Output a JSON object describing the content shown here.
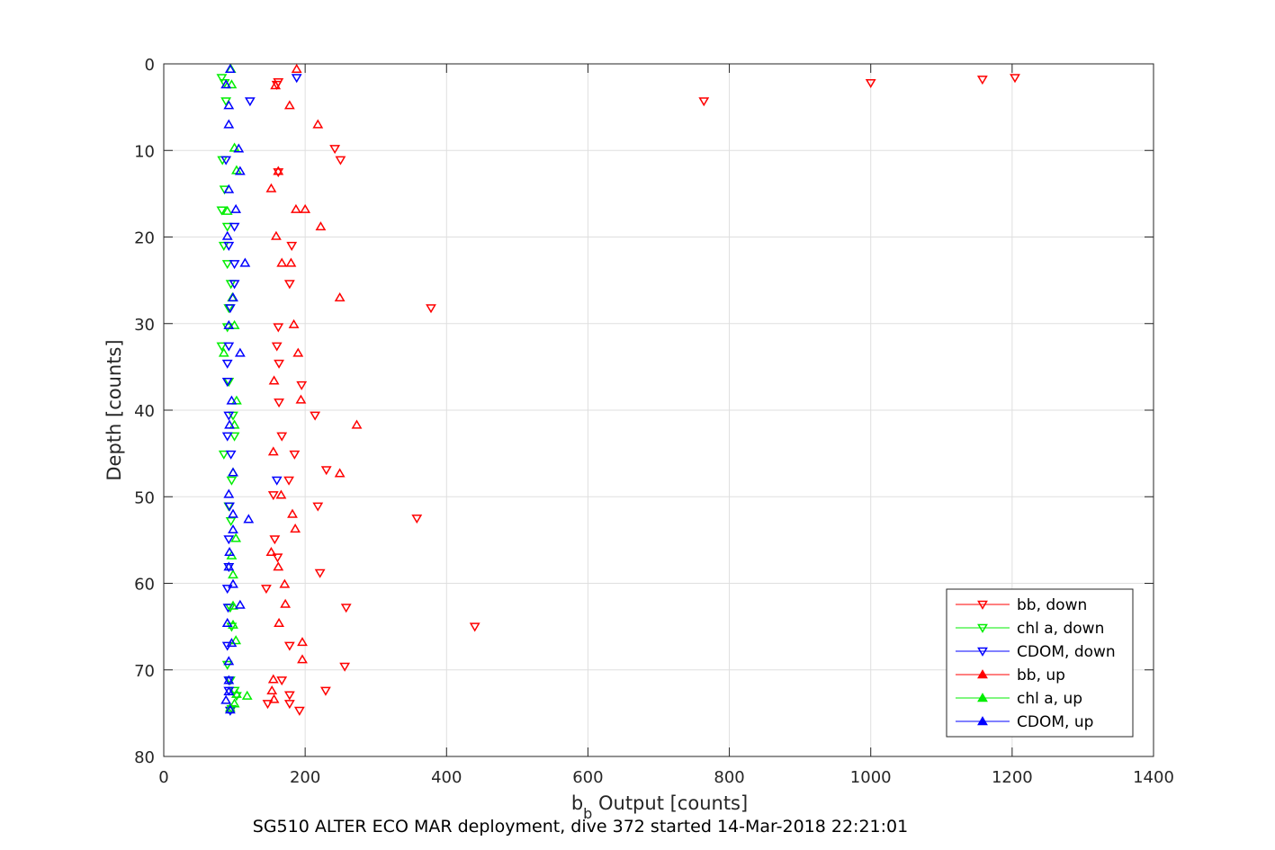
{
  "chart_data": {
    "type": "scatter",
    "title": "",
    "xlabel_main": "b",
    "xlabel_sub": "b",
    "xlabel_rest": " Output [counts]",
    "ylabel": "Depth [counts]",
    "caption": "SG510 ALTER ECO MAR deployment, dive 372 started 14-Mar-2018 22:21:01",
    "xlim": [
      0,
      1400
    ],
    "ylim": [
      0,
      80
    ],
    "y_reversed": true,
    "x_ticks": [
      0,
      200,
      400,
      600,
      800,
      1000,
      1200,
      1400
    ],
    "y_ticks": [
      0,
      10,
      20,
      30,
      40,
      50,
      60,
      70,
      80
    ],
    "grid": true,
    "legend_position": "bottom-right",
    "series": [
      {
        "name": "bb, down",
        "color": "#ff0000",
        "marker": "triangle-down",
        "points": [
          [
            1204,
            1.6
          ],
          [
            1158,
            1.8
          ],
          [
            1000,
            2.2
          ],
          [
            764,
            4.3
          ],
          [
            378,
            28.2
          ],
          [
            358,
            52.5
          ],
          [
            440,
            65.0
          ],
          [
            250,
            11.1
          ],
          [
            242,
            9.8
          ],
          [
            160,
            2.4
          ],
          [
            162,
            2.1
          ],
          [
            162,
            12.5
          ],
          [
            181,
            21.0
          ],
          [
            178,
            25.4
          ],
          [
            162,
            30.4
          ],
          [
            160,
            32.6
          ],
          [
            163,
            34.6
          ],
          [
            195,
            37.1
          ],
          [
            163,
            39.1
          ],
          [
            214,
            40.6
          ],
          [
            167,
            43.0
          ],
          [
            185,
            45.1
          ],
          [
            230,
            46.9
          ],
          [
            177,
            48.1
          ],
          [
            155,
            49.8
          ],
          [
            218,
            51.1
          ],
          [
            157,
            54.9
          ],
          [
            161,
            57.0
          ],
          [
            221,
            58.8
          ],
          [
            145,
            60.6
          ],
          [
            258,
            62.8
          ],
          [
            178,
            67.2
          ],
          [
            256,
            69.6
          ],
          [
            167,
            71.2
          ],
          [
            229,
            72.4
          ],
          [
            178,
            72.9
          ],
          [
            147,
            73.9
          ],
          [
            178,
            73.9
          ],
          [
            192,
            74.7
          ]
        ]
      },
      {
        "name": "chl a, down",
        "color": "#00ee00",
        "marker": "triangle-down",
        "points": [
          [
            82,
            1.6
          ],
          [
            86,
            2.2
          ],
          [
            88,
            4.3
          ],
          [
            83,
            11.1
          ],
          [
            86,
            14.5
          ],
          [
            82,
            16.9
          ],
          [
            90,
            18.8
          ],
          [
            85,
            21.0
          ],
          [
            90,
            23.1
          ],
          [
            95,
            25.4
          ],
          [
            92,
            28.2
          ],
          [
            90,
            30.4
          ],
          [
            82,
            32.6
          ],
          [
            92,
            36.7
          ],
          [
            98,
            40.6
          ],
          [
            100,
            43.0
          ],
          [
            85,
            45.1
          ],
          [
            96,
            48.1
          ],
          [
            92,
            51.1
          ],
          [
            95,
            52.8
          ],
          [
            92,
            58.1
          ],
          [
            94,
            62.8
          ],
          [
            96,
            65.0
          ],
          [
            90,
            69.4
          ],
          [
            94,
            71.2
          ],
          [
            100,
            72.4
          ],
          [
            103,
            73.0
          ],
          [
            96,
            74.5
          ]
        ]
      },
      {
        "name": "CDOM, down",
        "color": "#0000ff",
        "marker": "triangle-down",
        "points": [
          [
            188,
            1.6
          ],
          [
            122,
            4.3
          ],
          [
            88,
            11.1
          ],
          [
            100,
            18.8
          ],
          [
            92,
            21.0
          ],
          [
            100,
            23.1
          ],
          [
            100,
            25.4
          ],
          [
            94,
            28.2
          ],
          [
            92,
            32.6
          ],
          [
            90,
            34.6
          ],
          [
            90,
            36.7
          ],
          [
            92,
            40.6
          ],
          [
            90,
            43.0
          ],
          [
            95,
            45.1
          ],
          [
            160,
            48.1
          ],
          [
            93,
            51.1
          ],
          [
            92,
            54.9
          ],
          [
            92,
            58.1
          ],
          [
            90,
            60.6
          ],
          [
            91,
            62.8
          ],
          [
            90,
            67.2
          ],
          [
            92,
            71.2
          ],
          [
            92,
            72.4
          ],
          [
            94,
            74.7
          ]
        ]
      },
      {
        "name": "bb, up",
        "color": "#ff0000",
        "marker": "triangle-up",
        "points": [
          [
            188,
            0.6
          ],
          [
            158,
            2.5
          ],
          [
            178,
            4.8
          ],
          [
            218,
            7.0
          ],
          [
            162,
            12.4
          ],
          [
            152,
            14.4
          ],
          [
            187,
            16.8
          ],
          [
            200,
            16.8
          ],
          [
            222,
            18.8
          ],
          [
            159,
            19.9
          ],
          [
            167,
            23.0
          ],
          [
            180,
            23.0
          ],
          [
            249,
            27.0
          ],
          [
            184,
            30.1
          ],
          [
            190,
            33.4
          ],
          [
            156,
            36.6
          ],
          [
            194,
            38.8
          ],
          [
            273,
            41.7
          ],
          [
            155,
            44.8
          ],
          [
            249,
            47.3
          ],
          [
            166,
            49.8
          ],
          [
            182,
            52.0
          ],
          [
            186,
            53.7
          ],
          [
            152,
            56.4
          ],
          [
            162,
            58.1
          ],
          [
            171,
            60.1
          ],
          [
            172,
            62.4
          ],
          [
            163,
            64.6
          ],
          [
            196,
            66.8
          ],
          [
            196,
            68.8
          ],
          [
            155,
            71.1
          ],
          [
            153,
            72.4
          ],
          [
            156,
            73.4
          ]
        ]
      },
      {
        "name": "chl a, up",
        "color": "#00ee00",
        "marker": "triangle-up",
        "points": [
          [
            95,
            0.6
          ],
          [
            96,
            2.4
          ],
          [
            100,
            9.7
          ],
          [
            103,
            12.3
          ],
          [
            90,
            17.0
          ],
          [
            97,
            27.0
          ],
          [
            100,
            30.2
          ],
          [
            85,
            33.4
          ],
          [
            103,
            38.9
          ],
          [
            100,
            41.7
          ],
          [
            98,
            47.2
          ],
          [
            102,
            54.8
          ],
          [
            96,
            56.8
          ],
          [
            98,
            59.0
          ],
          [
            98,
            62.6
          ],
          [
            98,
            64.8
          ],
          [
            102,
            66.6
          ],
          [
            103,
            72.8
          ],
          [
            118,
            73.0
          ],
          [
            100,
            73.9
          ],
          [
            94,
            74.4
          ]
        ]
      },
      {
        "name": "CDOM, up",
        "color": "#0000ff",
        "marker": "triangle-up",
        "points": [
          [
            94,
            0.6
          ],
          [
            88,
            2.4
          ],
          [
            92,
            4.8
          ],
          [
            92,
            7.0
          ],
          [
            106,
            9.8
          ],
          [
            108,
            12.4
          ],
          [
            92,
            14.5
          ],
          [
            102,
            16.8
          ],
          [
            90,
            19.9
          ],
          [
            115,
            23.0
          ],
          [
            98,
            27.0
          ],
          [
            92,
            30.2
          ],
          [
            108,
            33.4
          ],
          [
            96,
            38.9
          ],
          [
            93,
            41.7
          ],
          [
            98,
            47.2
          ],
          [
            92,
            49.7
          ],
          [
            98,
            52.0
          ],
          [
            120,
            52.6
          ],
          [
            98,
            53.8
          ],
          [
            93,
            56.4
          ],
          [
            92,
            58.1
          ],
          [
            98,
            60.1
          ],
          [
            108,
            62.5
          ],
          [
            90,
            64.6
          ],
          [
            96,
            66.9
          ],
          [
            92,
            69.0
          ],
          [
            92,
            71.2
          ],
          [
            92,
            72.5
          ],
          [
            88,
            73.5
          ],
          [
            94,
            74.6
          ]
        ]
      }
    ]
  }
}
